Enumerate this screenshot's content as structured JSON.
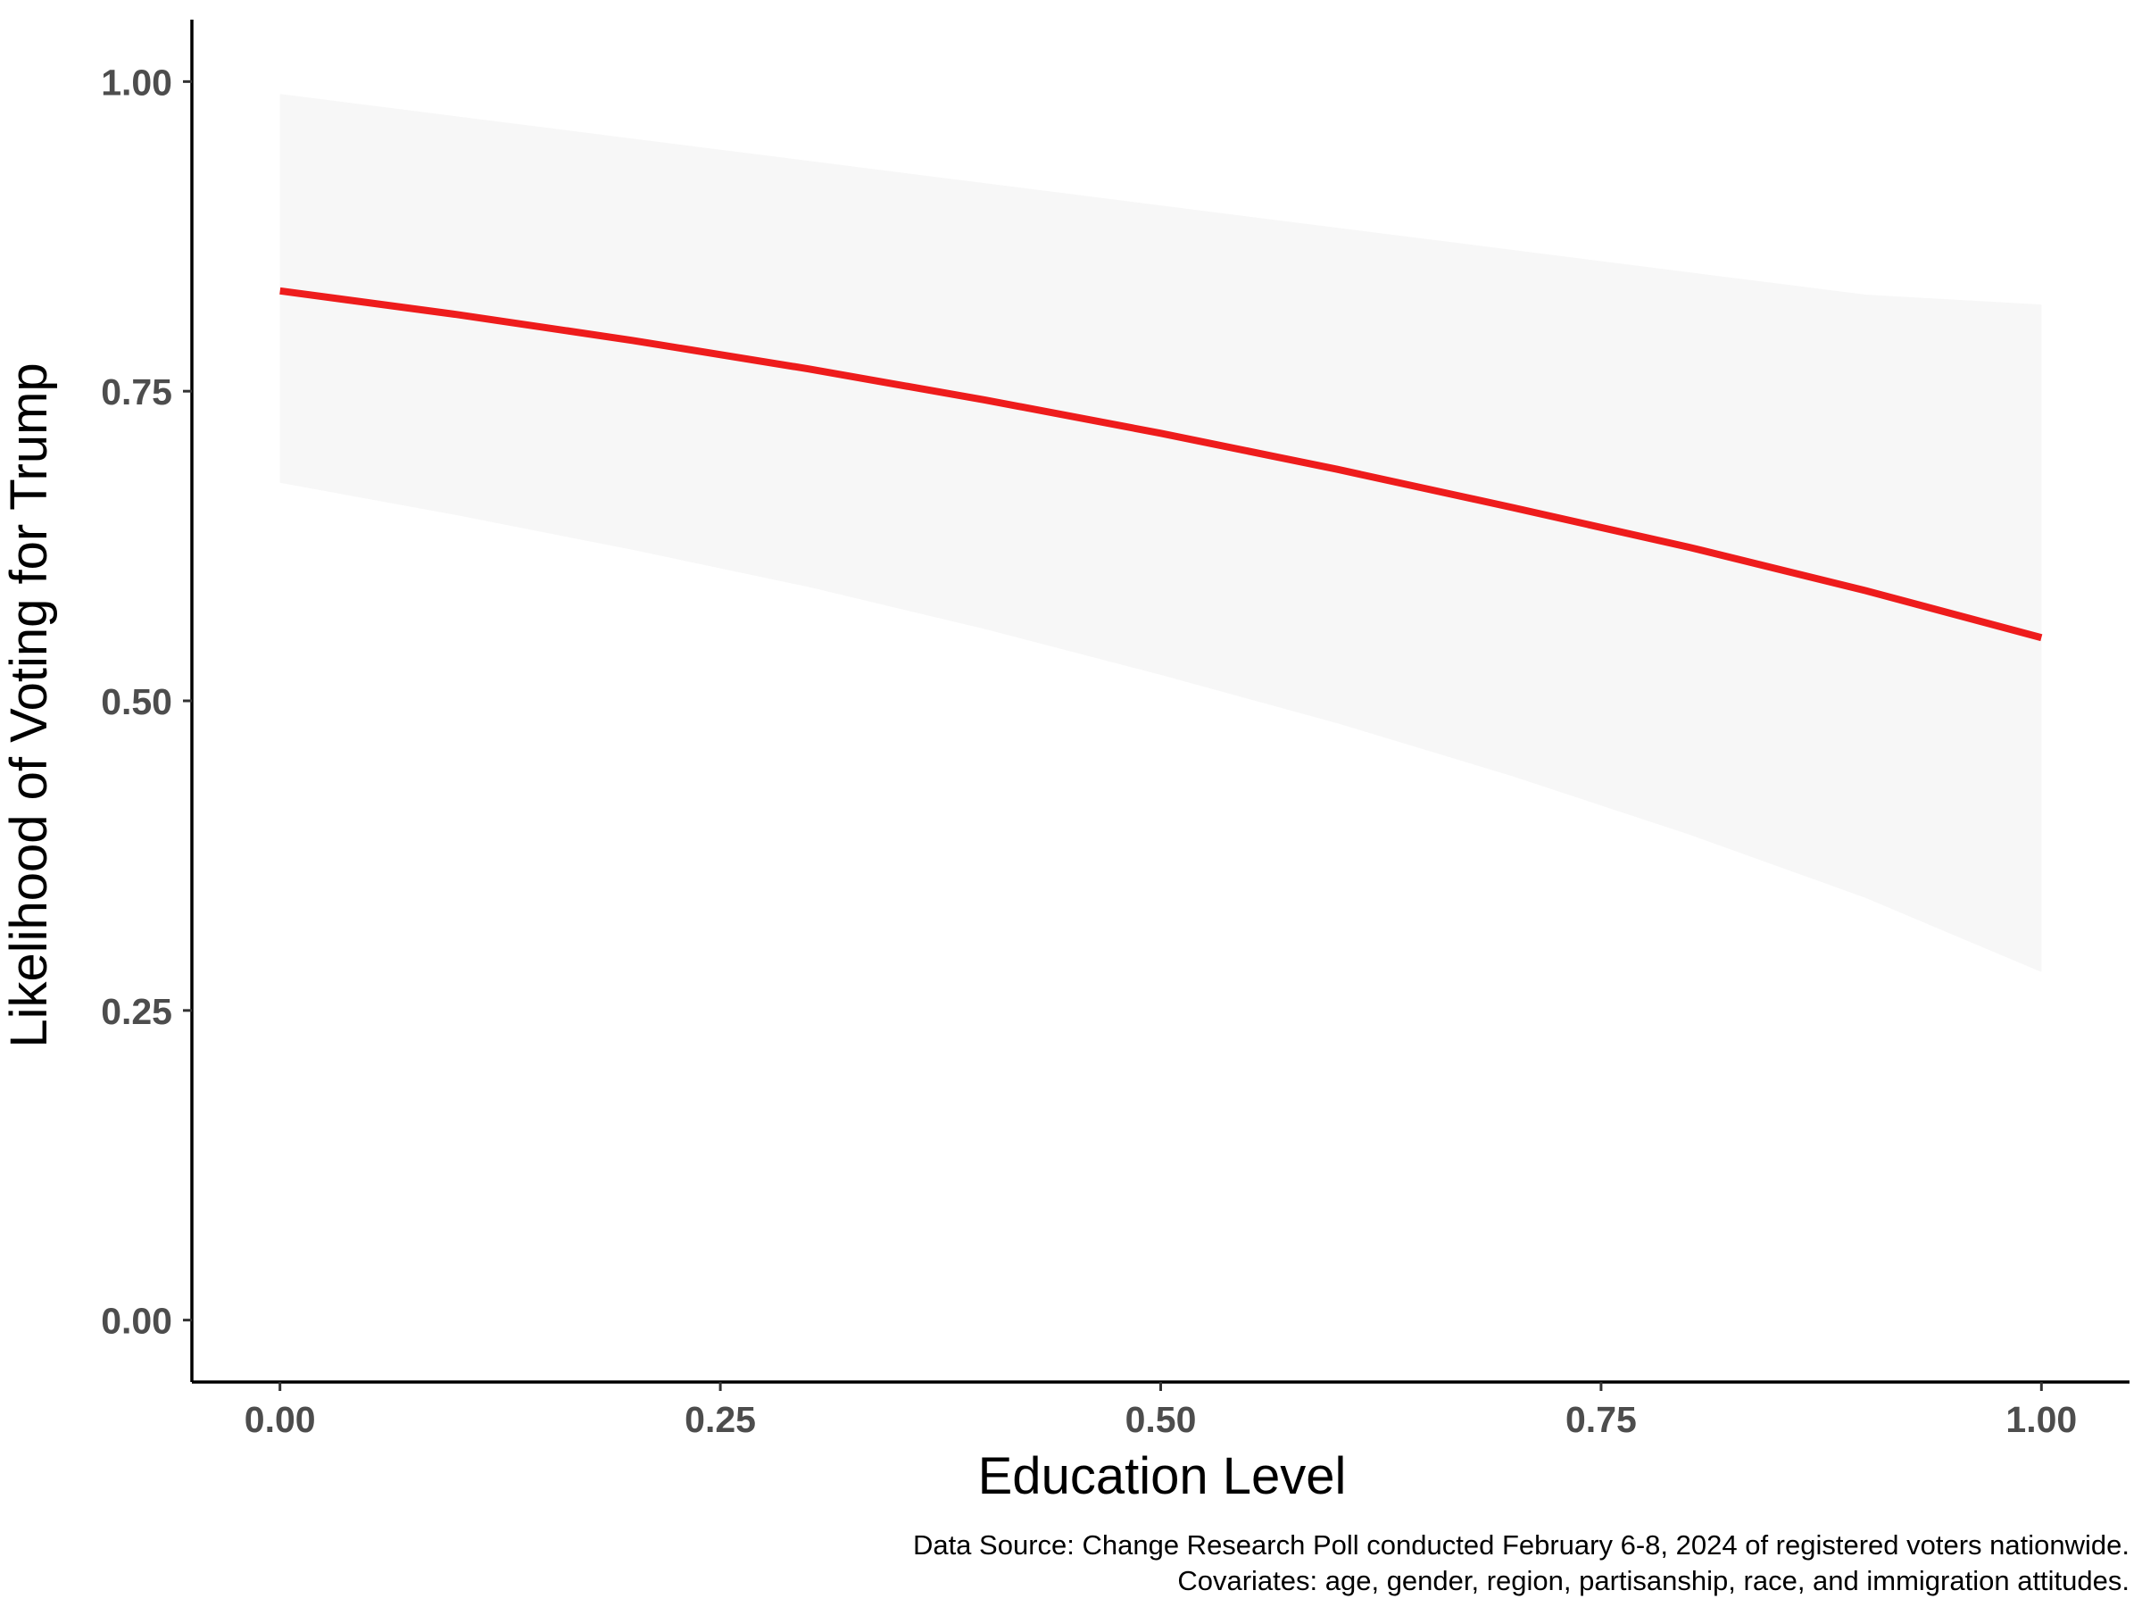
{
  "chart_data": {
    "type": "line",
    "xlabel": "Education Level",
    "ylabel": "Likelihood of Voting for Trump",
    "xlim": [
      -0.05,
      1.05
    ],
    "ylim": [
      -0.05,
      1.05
    ],
    "x_ticks": [
      0,
      0.25,
      0.5,
      0.75,
      1
    ],
    "y_ticks": [
      0,
      0.25,
      0.5,
      0.75,
      1
    ],
    "x_tick_labels": [
      "0.00",
      "0.25",
      "0.50",
      "0.75",
      "1.00"
    ],
    "y_tick_labels": [
      "0.00",
      "0.25",
      "0.50",
      "0.75",
      "1.00"
    ],
    "grid": false,
    "series": [
      {
        "x": [
          0,
          0.1,
          0.2,
          0.3,
          0.4,
          0.5,
          0.6,
          0.7,
          0.8,
          0.9,
          1.0
        ],
        "values": [
          0.831,
          0.812,
          0.791,
          0.768,
          0.743,
          0.716,
          0.687,
          0.656,
          0.624,
          0.589,
          0.551
        ],
        "lower": [
          0.676,
          0.65,
          0.622,
          0.592,
          0.558,
          0.521,
          0.482,
          0.439,
          0.392,
          0.341,
          0.281
        ],
        "upper": [
          0.99,
          0.972,
          0.954,
          0.936,
          0.918,
          0.9,
          0.882,
          0.864,
          0.846,
          0.828,
          0.82
        ],
        "color": "#ee1c1c",
        "band_color": "#f7f7f7"
      }
    ],
    "caption_lines": [
      "Data Source: Change Research Poll conducted February 6-8, 2024 of registered voters nationwide.",
      "Covariates: age, gender, region, partisanship, race, and immigration attitudes."
    ]
  }
}
